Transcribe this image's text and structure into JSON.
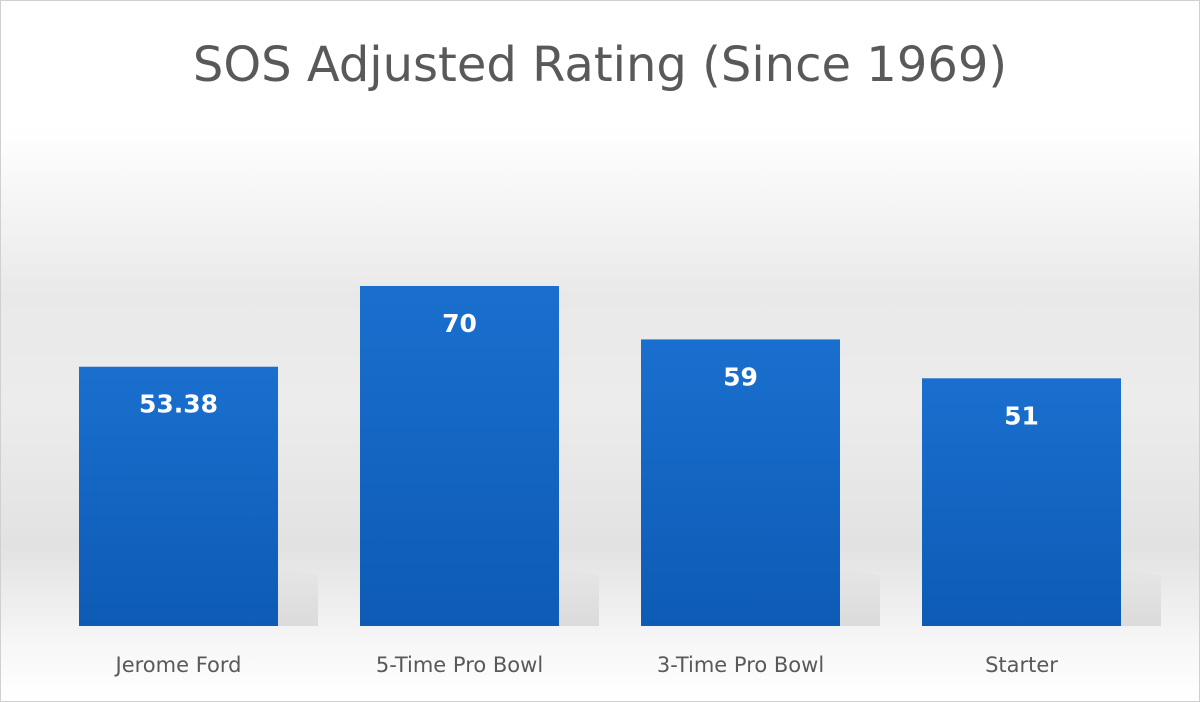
{
  "chart_data": {
    "type": "bar",
    "title": "SOS Adjusted Rating (Since 1969)",
    "categories": [
      "Jerome Ford",
      "5-Time Pro Bowl",
      "3-Time Pro Bowl",
      "Starter"
    ],
    "values": [
      53.38,
      70,
      59,
      51
    ],
    "data_labels": [
      "53.38",
      "70",
      "59",
      "51"
    ],
    "xlabel": "",
    "ylabel": "",
    "ylim": [
      0,
      75
    ],
    "grid": false,
    "legend": "none",
    "bar_color": "#1565c0"
  }
}
